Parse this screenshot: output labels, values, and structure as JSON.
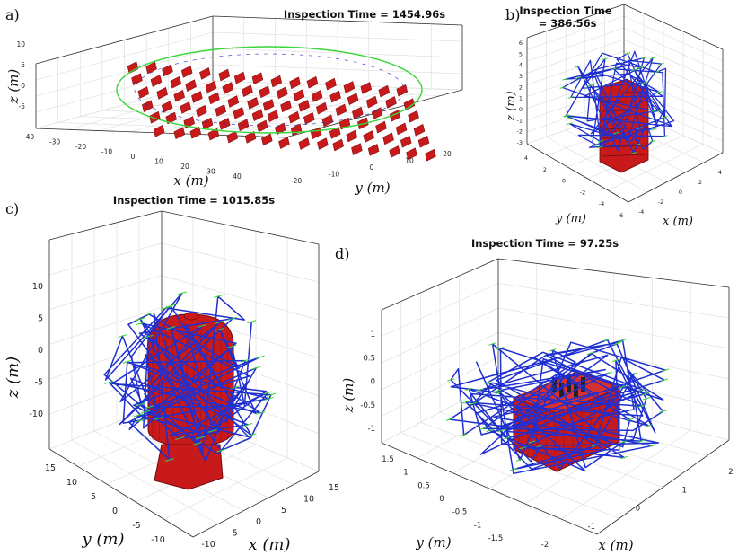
{
  "colors": {
    "structure": "#c8191b",
    "structure_dark": "#6e0b0b",
    "path": "#1f2fd0",
    "viewpoint": "#38d638",
    "grid": "#dcdcdc"
  },
  "chart_data": [
    {
      "type": "3d-scatter",
      "panel": "a)",
      "title": "Inspection Time = 1454.96s",
      "xlabel": "x (m)",
      "ylabel": "y (m)",
      "zlabel": "z (m)",
      "x_ticks": [
        "-40",
        "-30",
        "-20",
        "-10",
        "0",
        "10",
        "20",
        "30",
        "40"
      ],
      "y_ticks": [
        "-20",
        "-10",
        "0",
        "10",
        "20"
      ],
      "z_ticks": [
        "10",
        "5",
        "0",
        "-5"
      ],
      "xlim": [
        -40,
        40
      ],
      "ylim": [
        -25,
        25
      ],
      "zlim": [
        -7,
        10
      ],
      "grid": true,
      "series": []
    },
    {
      "type": "3d-scatter",
      "panel": "b)",
      "title": "Inspection Time\n= 386.56s",
      "xlabel": "x (m)",
      "ylabel": "y (m)",
      "zlabel": "z (m)",
      "x_ticks": [
        "-4",
        "-2",
        "0",
        "2",
        "4"
      ],
      "y_ticks": [
        "4",
        "2",
        "0",
        "-2",
        "-4",
        "-6"
      ],
      "z_ticks": [
        "6",
        "5",
        "4",
        "3",
        "2",
        "1",
        "0",
        "-1",
        "-2",
        "-3"
      ],
      "xlim": [
        -4,
        4
      ],
      "ylim": [
        -6,
        4
      ],
      "zlim": [
        -3,
        6
      ],
      "grid": true,
      "series": []
    },
    {
      "type": "3d-scatter",
      "panel": "c)",
      "title": "Inspection Time = 1015.85s",
      "xlabel": "x (m)",
      "ylabel": "y (m)",
      "zlabel": "z (m)",
      "x_ticks": [
        "-10",
        "-5",
        "0",
        "5",
        "10",
        "15"
      ],
      "y_ticks": [
        "15",
        "10",
        "5",
        "0",
        "-5",
        "-10"
      ],
      "z_ticks": [
        "10",
        "5",
        "0",
        "-5",
        "-10"
      ],
      "xlim": [
        -10,
        15
      ],
      "ylim": [
        -10,
        15
      ],
      "zlim": [
        -12,
        12
      ],
      "grid": true,
      "series": []
    },
    {
      "type": "3d-scatter",
      "panel": "d)",
      "title": "Inspection Time = 97.25s",
      "xlabel": "x (m)",
      "ylabel": "y (m)",
      "zlabel": "z (m)",
      "x_ticks": [
        "-2",
        "-1",
        "0",
        "1",
        "2"
      ],
      "y_ticks": [
        "1.5",
        "1",
        "0.5",
        "0",
        "-0.5",
        "-1",
        "-1.5"
      ],
      "z_ticks": [
        "1",
        "0.5",
        "0",
        "-0.5",
        "-1"
      ],
      "xlim": [
        -2,
        2
      ],
      "ylim": [
        -1.5,
        1.5
      ],
      "zlim": [
        -1.2,
        1.2
      ],
      "grid": true,
      "series": []
    }
  ]
}
